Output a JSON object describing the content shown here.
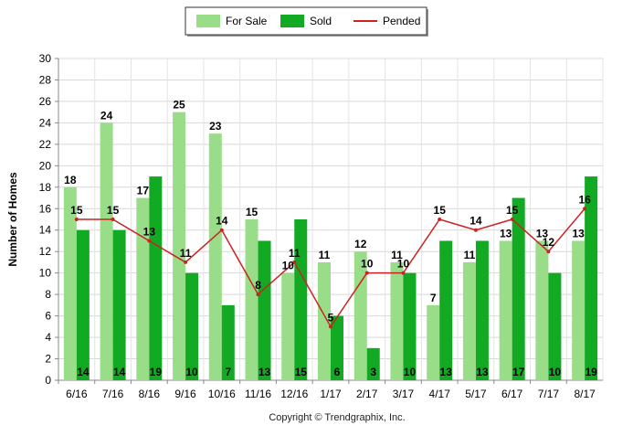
{
  "chart_data": {
    "type": "bar",
    "categories": [
      "6/16",
      "7/16",
      "8/16",
      "9/16",
      "10/16",
      "11/16",
      "12/16",
      "1/17",
      "2/17",
      "3/17",
      "4/17",
      "5/17",
      "6/17",
      "7/17",
      "8/17"
    ],
    "series": [
      {
        "name": "For Sale",
        "kind": "bar",
        "color": "#99dd88",
        "values": [
          18,
          24,
          17,
          25,
          23,
          15,
          10,
          11,
          12,
          11,
          7,
          11,
          13,
          13,
          13
        ]
      },
      {
        "name": "Sold",
        "kind": "bar",
        "color": "#11aa22",
        "values": [
          14,
          14,
          19,
          10,
          7,
          13,
          15,
          6,
          3,
          10,
          13,
          13,
          17,
          10,
          19
        ]
      },
      {
        "name": "Pended",
        "kind": "line",
        "color": "#cc2222",
        "values": [
          15,
          15,
          13,
          11,
          14,
          8,
          11,
          5,
          10,
          10,
          15,
          14,
          15,
          12,
          16
        ]
      }
    ],
    "ylabel": "Number of Homes",
    "xlabel": "",
    "ylim": [
      0,
      30
    ],
    "yticks": [
      0,
      2,
      4,
      6,
      8,
      10,
      12,
      14,
      16,
      18,
      20,
      22,
      24,
      26,
      28,
      30
    ],
    "grid": true,
    "legend_position": "top-center",
    "footer": "Copyright © Trendgraphix, Inc."
  }
}
